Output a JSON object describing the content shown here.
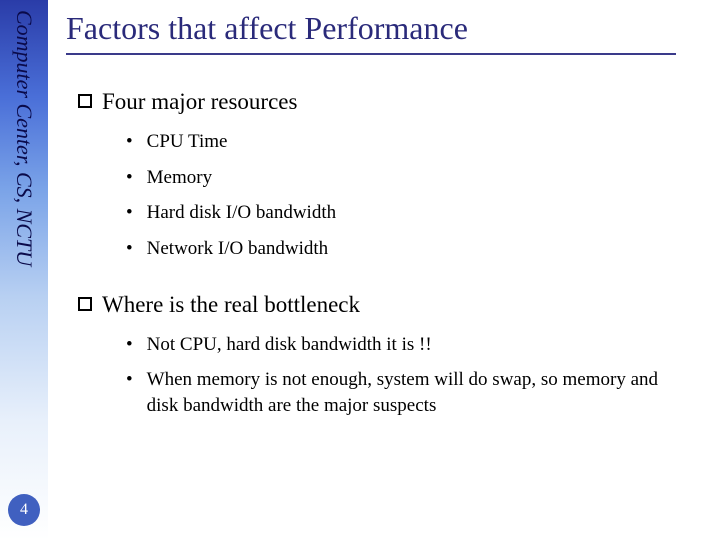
{
  "sidebar": {
    "label": "Computer Center, CS, NCTU",
    "text_color": "#0a0a4a",
    "gradient_top": "#2a3ca8",
    "gradient_bottom": "#ffffff"
  },
  "page_number": "4",
  "title": {
    "text": "Factors that affect Performance",
    "color": "#2a2a7a",
    "underline_color": "#3a3a8a",
    "fontsize": 32
  },
  "sections": [
    {
      "header": "Four major resources",
      "items": [
        "CPU Time",
        "Memory",
        "Hard disk I/O bandwidth",
        "Network I/O bandwidth"
      ]
    },
    {
      "header": "Where is the real bottleneck",
      "items": [
        "Not CPU, hard disk bandwidth it is !!",
        "When memory is not enough, system will do swap, so memory and disk bandwidth are the major suspects"
      ]
    }
  ],
  "bullets": {
    "section_marker": "□",
    "item_marker": "•"
  },
  "body_fontsize": 19,
  "header_fontsize": 23
}
